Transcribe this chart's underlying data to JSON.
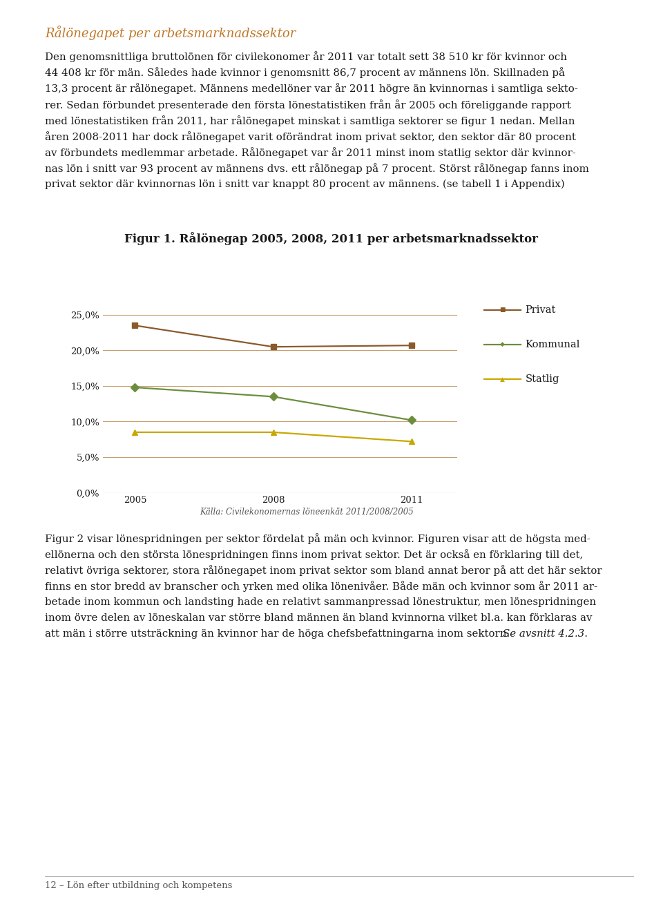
{
  "title": "Figur 1. Rålönegap 2005, 2008, 2011 per arbetsmarknadssektor",
  "years": [
    2005,
    2008,
    2011
  ],
  "series": [
    {
      "name": "Privat",
      "values": [
        0.235,
        0.205,
        0.207
      ],
      "color": "#8B5A2B",
      "marker": "s"
    },
    {
      "name": "Kommunal",
      "values": [
        0.148,
        0.135,
        0.102
      ],
      "color": "#6B8E3E",
      "marker": "D"
    },
    {
      "name": "Statlig",
      "values": [
        0.085,
        0.085,
        0.072
      ],
      "color": "#C8A800",
      "marker": "^"
    }
  ],
  "ylim": [
    0.0,
    0.27
  ],
  "yticks": [
    0.0,
    0.05,
    0.1,
    0.15,
    0.2,
    0.25
  ],
  "ytick_labels": [
    "0,0%",
    "5,0%",
    "10,0%",
    "15,0%",
    "20,0%",
    "25,0%"
  ],
  "xtick_labels": [
    "2005",
    "2008",
    "2011"
  ],
  "source_text": "Källa: Civilekonomernas löneenkät 2011/2008/2005",
  "page_header": "Rålönegapet per arbetsmarknadssektor",
  "footer_text": "12 – Lön efter utbildning och kompetens",
  "grid_color": "#C8A06E",
  "bg_color": "#FFFFFF",
  "figsize": [
    9.6,
    13.25
  ],
  "dpi": 100
}
